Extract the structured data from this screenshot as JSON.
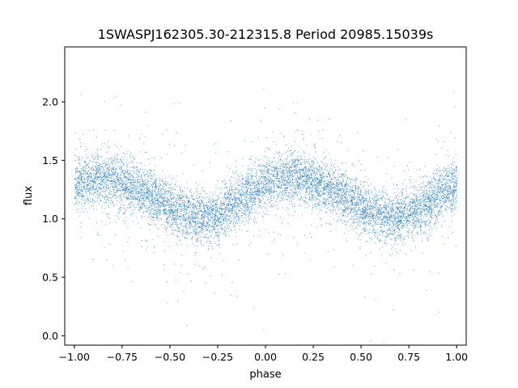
{
  "chart_data": {
    "type": "scatter",
    "title": "1SWASPJ162305.30-212315.8 Period 20985.15039s",
    "xlabel": "phase",
    "ylabel": "flux",
    "xlim": [
      -1.05,
      1.05
    ],
    "ylim": [
      -0.08,
      2.47
    ],
    "x_ticks": [
      -1.0,
      -0.75,
      -0.5,
      -0.25,
      0.0,
      0.25,
      0.5,
      0.75,
      1.0
    ],
    "x_tick_labels": [
      "−1.00",
      "−0.75",
      "−0.50",
      "−0.25",
      "0.00",
      "0.25",
      "0.50",
      "0.75",
      "1.00"
    ],
    "y_ticks": [
      0.0,
      0.5,
      1.0,
      1.5,
      2.0
    ],
    "y_tick_labels": [
      "0.0",
      "0.5",
      "1.0",
      "1.5",
      "2.0"
    ],
    "grid": false,
    "legend": "none",
    "marker_color": "#1f77b4",
    "series": [
      {
        "x": [
          -1.0,
          -0.9,
          -0.8,
          -0.7,
          -0.6,
          -0.5,
          -0.4,
          -0.3,
          -0.2,
          -0.1,
          0.0,
          0.1,
          0.2,
          0.3,
          0.4,
          0.5,
          0.6,
          0.7,
          0.8,
          0.9,
          1.0
        ],
        "y": [
          1.3,
          1.36,
          1.35,
          1.28,
          1.2,
          1.1,
          1.03,
          1.0,
          1.08,
          1.2,
          1.3,
          1.36,
          1.35,
          1.28,
          1.2,
          1.1,
          1.03,
          1.0,
          1.08,
          1.2,
          1.3
        ],
        "scatter_sd": 0.11
      }
    ]
  }
}
